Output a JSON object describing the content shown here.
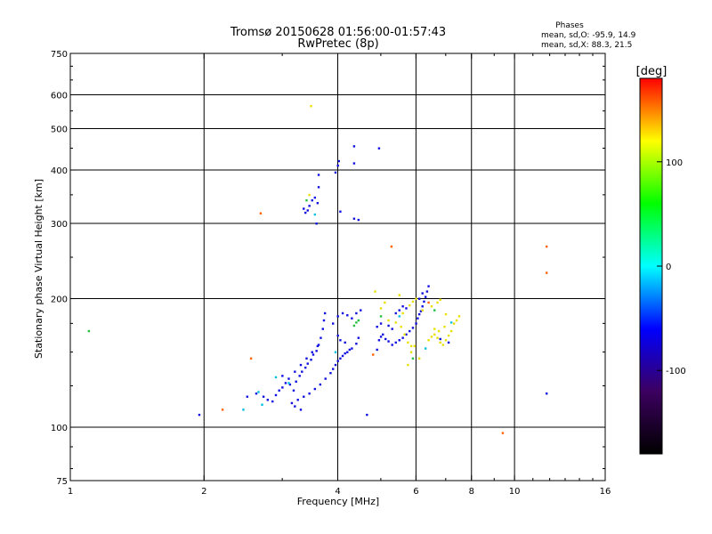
{
  "title_line1": "Tromsø 20150628 01:56:00-01:57:43",
  "title_line2": "RwPretec (8p)",
  "phases_header": "Phases",
  "phases_o": "mean, sd,O: -95.9, 14.9",
  "phases_x": "mean, sd,X:  88.3, 21.5",
  "colorbar_label": "[deg]",
  "chart_data": {
    "type": "scatter",
    "xlabel": "Frequency [MHz]",
    "ylabel": "Stationary phase Virtual Height [km]",
    "xscale": "log",
    "yscale": "log",
    "xlim": [
      1,
      16
    ],
    "ylim": [
      75,
      750
    ],
    "xticks": [
      1,
      2,
      4,
      6,
      8,
      10,
      16
    ],
    "xtick_labels": [
      "1",
      "2",
      "4",
      "6",
      "8",
      "10",
      "16"
    ],
    "xgrid": [
      2,
      4,
      6,
      8,
      10
    ],
    "yticks": [
      75,
      100,
      200,
      300,
      400,
      500,
      600,
      750
    ],
    "ytick_labels": [
      "75",
      "100",
      "200",
      "300",
      "400",
      "500",
      "600",
      "750"
    ],
    "ygrid": [
      100,
      200,
      300,
      400,
      500,
      600
    ],
    "grid": true,
    "colorbar": {
      "range": [
        -180,
        180
      ],
      "ticks": [
        100,
        0,
        -100
      ],
      "tick_labels": [
        "100",
        "0",
        "-100"
      ],
      "colors": [
        "#000000",
        "#3c0060",
        "#0000ff",
        "#00ffff",
        "#00ff00",
        "#ffff00",
        "#ff0000"
      ]
    },
    "series": [
      {
        "points": [
          [
            2.5,
            118
          ],
          [
            2.62,
            120
          ],
          [
            2.72,
            118
          ],
          [
            2.78,
            116
          ],
          [
            2.85,
            115
          ],
          [
            2.9,
            119
          ],
          [
            2.95,
            122
          ],
          [
            3.0,
            124
          ],
          [
            3.05,
            127
          ],
          [
            3.12,
            126
          ],
          [
            3.18,
            122
          ],
          [
            3.22,
            128
          ],
          [
            3.28,
            132
          ],
          [
            3.32,
            135
          ],
          [
            3.38,
            138
          ],
          [
            3.42,
            141
          ],
          [
            3.48,
            144
          ],
          [
            3.52,
            148
          ],
          [
            3.58,
            151
          ],
          [
            3.62,
            156
          ],
          [
            3.66,
            162
          ],
          [
            3.7,
            170
          ],
          [
            3.72,
            178
          ],
          [
            3.74,
            185
          ],
          [
            3.1,
            130
          ],
          [
            3.0,
            132
          ],
          [
            3.2,
            135
          ],
          [
            3.3,
            140
          ],
          [
            3.4,
            145
          ],
          [
            3.5,
            150
          ],
          [
            3.6,
            155
          ],
          [
            3.15,
            114
          ],
          [
            3.25,
            116
          ],
          [
            3.2,
            112
          ],
          [
            3.3,
            110
          ],
          [
            3.35,
            118
          ],
          [
            3.45,
            120
          ],
          [
            3.55,
            123
          ],
          [
            3.65,
            126
          ],
          [
            3.75,
            130
          ],
          [
            3.85,
            134
          ],
          [
            3.9,
            137
          ],
          [
            3.95,
            140
          ],
          [
            4.0,
            143
          ],
          [
            4.05,
            145
          ],
          [
            4.1,
            147
          ],
          [
            4.15,
            149
          ],
          [
            4.2,
            150
          ],
          [
            4.25,
            152
          ],
          [
            4.3,
            153
          ],
          [
            4.4,
            157
          ],
          [
            4.45,
            162
          ],
          [
            3.9,
            175
          ],
          [
            4.0,
            182
          ],
          [
            4.1,
            185
          ],
          [
            4.2,
            183
          ],
          [
            4.3,
            180
          ],
          [
            4.4,
            185
          ],
          [
            4.5,
            188
          ],
          [
            4.0,
            164
          ],
          [
            4.05,
            160
          ],
          [
            4.15,
            158
          ],
          [
            3.35,
            325
          ],
          [
            3.38,
            318
          ],
          [
            3.42,
            322
          ],
          [
            3.45,
            330
          ],
          [
            3.5,
            340
          ],
          [
            3.55,
            345
          ],
          [
            3.6,
            335
          ],
          [
            3.62,
            365
          ],
          [
            3.62,
            390
          ],
          [
            3.58,
            300
          ],
          [
            3.95,
            395
          ],
          [
            4.0,
            410
          ],
          [
            4.02,
            420
          ],
          [
            4.05,
            320
          ],
          [
            4.35,
            308
          ],
          [
            4.45,
            306
          ],
          [
            4.35,
            415
          ],
          [
            4.35,
            455
          ],
          [
            4.95,
            450
          ],
          [
            4.9,
            152
          ],
          [
            4.95,
            160
          ],
          [
            5.0,
            163
          ],
          [
            5.05,
            165
          ],
          [
            5.12,
            161
          ],
          [
            5.2,
            159
          ],
          [
            5.3,
            156
          ],
          [
            5.4,
            158
          ],
          [
            5.5,
            160
          ],
          [
            5.6,
            162
          ],
          [
            5.7,
            165
          ],
          [
            5.8,
            168
          ],
          [
            5.9,
            171
          ],
          [
            6.0,
            175
          ],
          [
            6.05,
            180
          ],
          [
            6.1,
            184
          ],
          [
            6.15,
            187
          ],
          [
            6.2,
            192
          ],
          [
            6.25,
            197
          ],
          [
            6.3,
            202
          ],
          [
            6.35,
            208
          ],
          [
            6.4,
            214
          ],
          [
            5.4,
            185
          ],
          [
            5.5,
            188
          ],
          [
            5.6,
            192
          ],
          [
            5.7,
            190
          ],
          [
            6.1,
            200
          ],
          [
            6.2,
            206
          ],
          [
            4.9,
            172
          ],
          [
            5.0,
            175
          ],
          [
            5.2,
            173
          ],
          [
            5.3,
            170
          ],
          [
            1.95,
            107
          ],
          [
            4.65,
            107
          ],
          [
            11.8,
            120
          ],
          [
            7.1,
            158
          ],
          [
            6.8,
            161
          ]
        ],
        "color": "#1010e0"
      },
      {
        "points": [
          [
            5.2,
            178
          ],
          [
            5.4,
            176
          ],
          [
            5.55,
            172
          ],
          [
            5.65,
            165
          ],
          [
            5.75,
            158
          ],
          [
            5.85,
            155
          ],
          [
            6.4,
            160
          ],
          [
            6.5,
            163
          ],
          [
            6.6,
            165
          ],
          [
            6.7,
            162
          ],
          [
            6.8,
            158
          ],
          [
            6.9,
            156
          ],
          [
            7.0,
            160
          ],
          [
            7.1,
            164
          ],
          [
            7.2,
            168
          ],
          [
            7.3,
            175
          ],
          [
            7.4,
            178
          ],
          [
            7.5,
            182
          ],
          [
            7.0,
            184
          ],
          [
            6.95,
            172
          ],
          [
            6.6,
            170
          ],
          [
            6.75,
            168
          ],
          [
            5.8,
            193
          ],
          [
            5.9,
            197
          ],
          [
            6.0,
            200
          ],
          [
            6.2,
            188
          ],
          [
            6.5,
            192
          ],
          [
            6.7,
            196
          ],
          [
            6.8,
            199
          ],
          [
            5.0,
            190
          ],
          [
            5.1,
            196
          ],
          [
            5.5,
            204
          ],
          [
            5.6,
            185
          ],
          [
            4.85,
            208
          ],
          [
            5.75,
            140
          ],
          [
            5.85,
            150
          ],
          [
            5.95,
            155
          ],
          [
            6.1,
            145
          ],
          [
            3.45,
            350
          ],
          [
            3.48,
            565
          ]
        ],
        "color": "#e8e000"
      },
      {
        "points": [
          [
            1.1,
            168
          ],
          [
            4.35,
            173
          ],
          [
            4.4,
            176
          ],
          [
            5.9,
            145
          ],
          [
            6.6,
            188
          ],
          [
            3.4,
            340
          ],
          [
            4.45,
            178
          ],
          [
            5.0,
            182
          ]
        ],
        "color": "#20c040"
      },
      {
        "points": [
          [
            2.45,
            110
          ],
          [
            2.65,
            121
          ],
          [
            2.7,
            113
          ],
          [
            2.9,
            131
          ],
          [
            3.1,
            127
          ],
          [
            3.55,
            315
          ],
          [
            3.95,
            150
          ],
          [
            5.5,
            182
          ],
          [
            6.3,
            153
          ],
          [
            7.2,
            176
          ]
        ],
        "color": "#00c0e0"
      },
      {
        "points": [
          [
            2.2,
            110
          ],
          [
            2.55,
            145
          ],
          [
            2.68,
            317
          ],
          [
            5.28,
            265
          ],
          [
            11.8,
            265
          ],
          [
            11.8,
            230
          ],
          [
            9.4,
            97
          ],
          [
            4.8,
            148
          ],
          [
            6.4,
            196
          ]
        ],
        "color": "#ff6000"
      }
    ]
  }
}
